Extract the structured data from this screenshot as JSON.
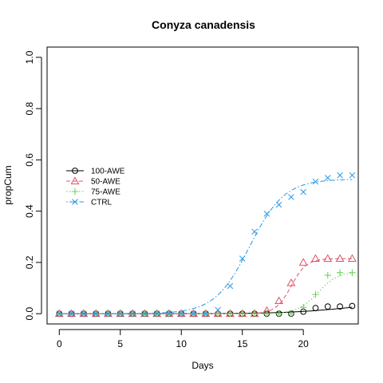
{
  "chart_data": {
    "type": "line",
    "title": "Conyza canadensis",
    "xlabel": "Days",
    "ylabel": "propCum",
    "xlim": [
      -1,
      24.5
    ],
    "ylim": [
      -0.04,
      1.04
    ],
    "xticks": [
      0,
      5,
      10,
      15,
      20
    ],
    "xtick_labels": [
      "0",
      "5",
      "10",
      "15",
      "20"
    ],
    "yticks": [
      0.0,
      0.2,
      0.4,
      0.6,
      0.8,
      1.0
    ],
    "ytick_labels": [
      "0.0",
      "0.2",
      "0.4",
      "0.6",
      "0.8",
      "1.0"
    ],
    "grid": false,
    "legend_position": "left-middle",
    "series": [
      {
        "name": "100-AWE",
        "color": "#000000",
        "marker": "circle",
        "dash": "solid",
        "points": [
          [
            0,
            0
          ],
          [
            1,
            0
          ],
          [
            2,
            0
          ],
          [
            3,
            0
          ],
          [
            4,
            0
          ],
          [
            5,
            0
          ],
          [
            6,
            0
          ],
          [
            7,
            0
          ],
          [
            8,
            0
          ],
          [
            9,
            0
          ],
          [
            10,
            0
          ],
          [
            11,
            0
          ],
          [
            12,
            0
          ],
          [
            13,
            0
          ],
          [
            14,
            0
          ],
          [
            15,
            0
          ],
          [
            16,
            0
          ],
          [
            17,
            0
          ],
          [
            18,
            0
          ],
          [
            19,
            0
          ],
          [
            20,
            0.008
          ],
          [
            21,
            0.022
          ],
          [
            22,
            0.028
          ],
          [
            23,
            0.028
          ],
          [
            24,
            0.03
          ]
        ],
        "curve": {
          "L": 0.05,
          "k": 0.38,
          "t0": 24
        }
      },
      {
        "name": "50-AWE",
        "color": "#DF536B",
        "marker": "triangle",
        "dash": "dashed",
        "points": [
          [
            0,
            0
          ],
          [
            1,
            0
          ],
          [
            2,
            0
          ],
          [
            3,
            0
          ],
          [
            4,
            0
          ],
          [
            5,
            0
          ],
          [
            6,
            0
          ],
          [
            7,
            0
          ],
          [
            8,
            0
          ],
          [
            9,
            0
          ],
          [
            10,
            0
          ],
          [
            11,
            0
          ],
          [
            12,
            0
          ],
          [
            13,
            0
          ],
          [
            14,
            0
          ],
          [
            15,
            0
          ],
          [
            16,
            0
          ],
          [
            17,
            0.012
          ],
          [
            18,
            0.05
          ],
          [
            19,
            0.12
          ],
          [
            20,
            0.2
          ],
          [
            21,
            0.215
          ],
          [
            22,
            0.215
          ],
          [
            23,
            0.215
          ],
          [
            24,
            0.215
          ]
        ],
        "curve": {
          "L": 0.215,
          "k": 1.6,
          "t0": 19
        }
      },
      {
        "name": "75-AWE",
        "color": "#61D04F",
        "marker": "plus",
        "dash": "dotted",
        "points": [
          [
            0,
            0
          ],
          [
            1,
            0
          ],
          [
            2,
            0
          ],
          [
            3,
            0
          ],
          [
            4,
            0
          ],
          [
            5,
            0
          ],
          [
            6,
            0
          ],
          [
            7,
            0
          ],
          [
            8,
            0
          ],
          [
            9,
            0
          ],
          [
            10,
            0
          ],
          [
            11,
            0
          ],
          [
            12,
            0
          ],
          [
            13,
            0
          ],
          [
            14,
            0
          ],
          [
            15,
            0
          ],
          [
            16,
            0
          ],
          [
            17,
            0
          ],
          [
            18,
            0
          ],
          [
            19,
            0
          ],
          [
            20,
            0.025
          ],
          [
            21,
            0.075
          ],
          [
            22,
            0.15
          ],
          [
            23,
            0.16
          ],
          [
            24,
            0.16
          ]
        ],
        "curve": {
          "L": 0.165,
          "k": 1.2,
          "t0": 21.2
        }
      },
      {
        "name": "CTRL",
        "color": "#2297E6",
        "marker": "cross",
        "dash": "dotdash",
        "points": [
          [
            0,
            0
          ],
          [
            1,
            0
          ],
          [
            2,
            0
          ],
          [
            3,
            0
          ],
          [
            4,
            0
          ],
          [
            5,
            0
          ],
          [
            6,
            0
          ],
          [
            7,
            0
          ],
          [
            8,
            0
          ],
          [
            9,
            0
          ],
          [
            10,
            0
          ],
          [
            11,
            0
          ],
          [
            12,
            0
          ],
          [
            13,
            0.015
          ],
          [
            14,
            0.108
          ],
          [
            15,
            0.215
          ],
          [
            16,
            0.32
          ],
          [
            17,
            0.39
          ],
          [
            18,
            0.425
          ],
          [
            19,
            0.455
          ],
          [
            20,
            0.475
          ],
          [
            21,
            0.515
          ],
          [
            22,
            0.53
          ],
          [
            23,
            0.54
          ],
          [
            24,
            0.54
          ]
        ],
        "curve": {
          "L": 0.525,
          "k": 0.7,
          "t0": 15.6
        }
      }
    ]
  }
}
